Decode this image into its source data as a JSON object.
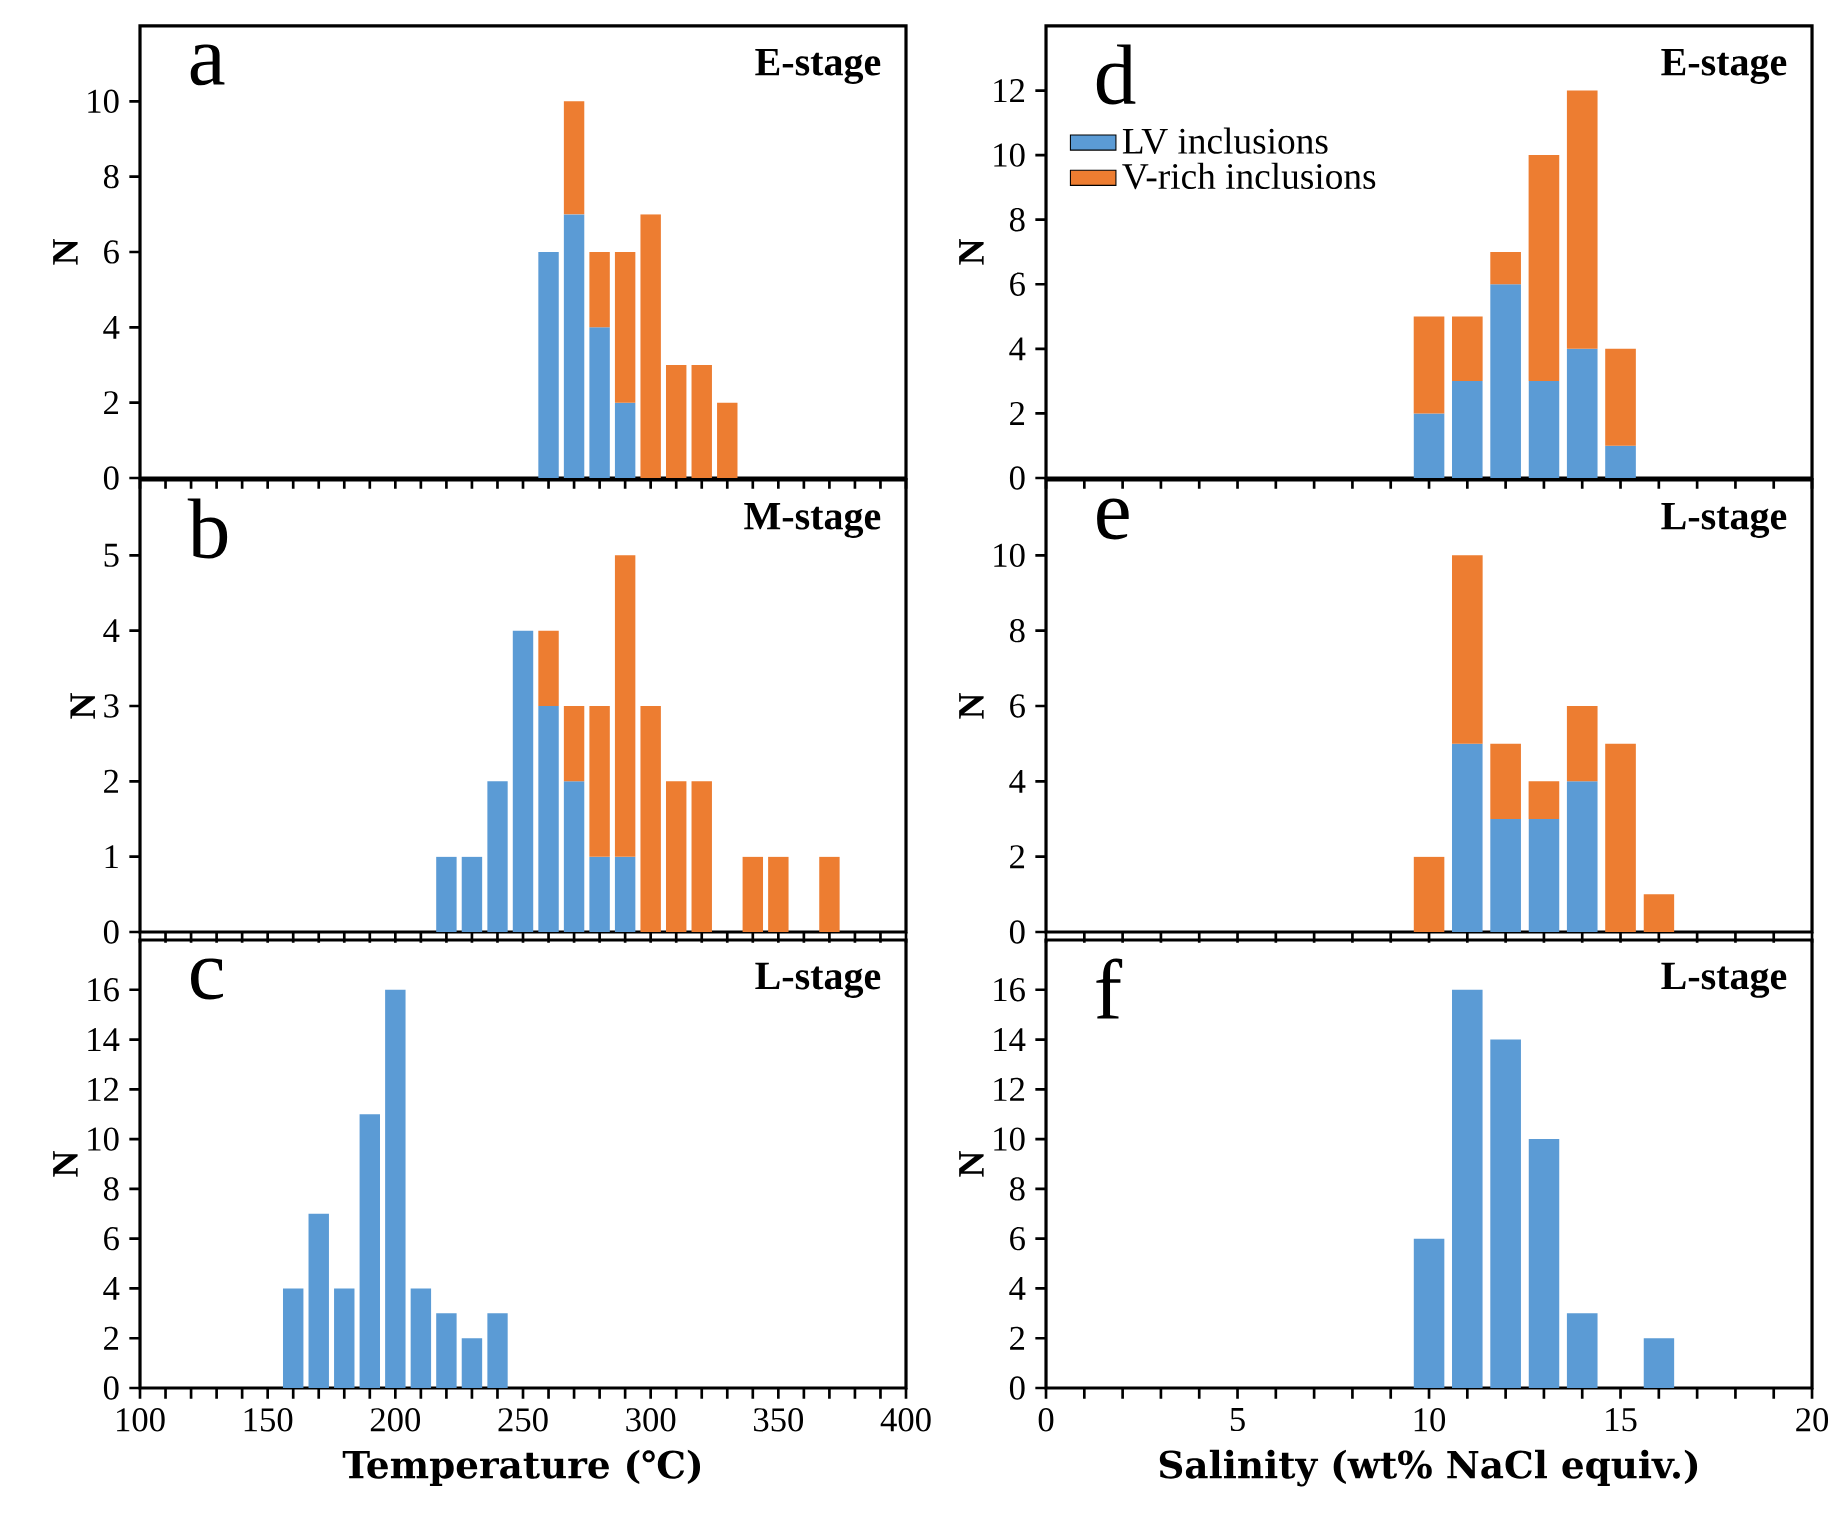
{
  "chart_data": [
    {
      "type": "bar",
      "stacked": true,
      "title": "E-stage",
      "ylabel": "N",
      "annotations": [
        "a"
      ],
      "tick_labels": "y",
      "x": [
        260,
        270,
        280,
        290,
        300,
        310,
        320,
        330
      ],
      "series": [
        {
          "color": "#5b9bd5",
          "values": [
            6,
            7,
            4,
            2,
            null,
            null,
            null,
            null
          ]
        },
        {
          "color": "#ed7d31",
          "values": [
            null,
            3,
            2,
            4,
            7,
            3,
            3,
            2
          ]
        }
      ],
      "xlim": [
        100,
        400
      ],
      "ylim": [
        0,
        12
      ],
      "yticks": [
        0,
        2,
        4,
        6,
        8,
        10
      ],
      "xticks": [
        100,
        {
          "value": 110,
          "label": null
        },
        {
          "value": 120,
          "label": null
        },
        {
          "value": 130,
          "label": null
        },
        {
          "value": 140,
          "label": null
        },
        150,
        {
          "value": 160,
          "label": null
        },
        {
          "value": 170,
          "label": null
        },
        {
          "value": 180,
          "label": null
        },
        {
          "value": 190,
          "label": null
        },
        200,
        {
          "value": 210,
          "label": null
        },
        {
          "value": 220,
          "label": null
        },
        {
          "value": 230,
          "label": null
        },
        {
          "value": 240,
          "label": null
        },
        250,
        {
          "value": 260,
          "label": null
        },
        {
          "value": 270,
          "label": null
        },
        {
          "value": 280,
          "label": null
        },
        {
          "value": 290,
          "label": null
        },
        300,
        {
          "value": 310,
          "label": null
        },
        {
          "value": 320,
          "label": null
        },
        {
          "value": 330,
          "label": null
        },
        {
          "value": 340,
          "label": null
        },
        350,
        {
          "value": 360,
          "label": null
        },
        {
          "value": 370,
          "label": null
        },
        {
          "value": 380,
          "label": null
        },
        {
          "value": 390,
          "label": null
        },
        400
      ]
    },
    {
      "type": "bar",
      "stacked": true,
      "title": "E-stage",
      "ylabel": "N",
      "annotations": [
        "d"
      ],
      "tick_labels": "y",
      "legend": "top left",
      "x": [
        10,
        11,
        12,
        13,
        14,
        15
      ],
      "series": [
        {
          "name": "LV inclusions",
          "color": "#5b9bd5",
          "values": [
            2,
            3,
            6,
            3,
            4,
            1
          ]
        },
        {
          "name": "V-rich inclusions",
          "color": "#ed7d31",
          "values": [
            3,
            2,
            1,
            7,
            8,
            3
          ]
        }
      ],
      "xlim": [
        0,
        20
      ],
      "ylim": [
        0,
        14
      ],
      "yticks": [
        0,
        2,
        4,
        6,
        8,
        10,
        12
      ],
      "xticks": [
        0,
        {
          "value": 1,
          "label": null
        },
        {
          "value": 2,
          "label": null
        },
        {
          "value": 3,
          "label": null
        },
        {
          "value": 4,
          "label": null
        },
        5,
        {
          "value": 6,
          "label": null
        },
        {
          "value": 7,
          "label": null
        },
        {
          "value": 8,
          "label": null
        },
        {
          "value": 9,
          "label": null
        },
        10,
        {
          "value": 11,
          "label": null
        },
        {
          "value": 12,
          "label": null
        },
        {
          "value": 13,
          "label": null
        },
        {
          "value": 14,
          "label": null
        },
        15,
        {
          "value": 16,
          "label": null
        },
        {
          "value": 17,
          "label": null
        },
        {
          "value": 18,
          "label": null
        },
        {
          "value": 19,
          "label": null
        },
        20
      ]
    },
    {
      "type": "bar",
      "stacked": true,
      "title": "M-stage",
      "ylabel": "N",
      "annotations": [
        "b"
      ],
      "tick_labels": "y",
      "x": [
        220,
        230,
        240,
        250,
        260,
        270,
        280,
        290,
        300,
        310,
        320,
        340,
        350,
        370
      ],
      "series": [
        {
          "color": "#5b9bd5",
          "values": [
            1,
            1,
            2,
            4,
            3,
            2,
            1,
            1,
            null,
            null,
            null,
            null,
            null,
            null
          ]
        },
        {
          "color": "#ed7d31",
          "values": [
            null,
            null,
            null,
            null,
            1,
            1,
            2,
            4,
            3,
            2,
            2,
            1,
            1,
            1
          ]
        }
      ],
      "xlim": [
        100,
        400
      ],
      "ylim": [
        0,
        6
      ],
      "yticks": [
        0,
        1,
        2,
        3,
        4,
        5
      ],
      "xticks": [
        100,
        {
          "value": 110,
          "label": null
        },
        {
          "value": 120,
          "label": null
        },
        {
          "value": 130,
          "label": null
        },
        {
          "value": 140,
          "label": null
        },
        150,
        {
          "value": 160,
          "label": null
        },
        {
          "value": 170,
          "label": null
        },
        {
          "value": 180,
          "label": null
        },
        {
          "value": 190,
          "label": null
        },
        200,
        {
          "value": 210,
          "label": null
        },
        {
          "value": 220,
          "label": null
        },
        {
          "value": 230,
          "label": null
        },
        {
          "value": 240,
          "label": null
        },
        250,
        {
          "value": 260,
          "label": null
        },
        {
          "value": 270,
          "label": null
        },
        {
          "value": 280,
          "label": null
        },
        {
          "value": 290,
          "label": null
        },
        300,
        {
          "value": 310,
          "label": null
        },
        {
          "value": 320,
          "label": null
        },
        {
          "value": 330,
          "label": null
        },
        {
          "value": 340,
          "label": null
        },
        350,
        {
          "value": 360,
          "label": null
        },
        {
          "value": 370,
          "label": null
        },
        {
          "value": 380,
          "label": null
        },
        {
          "value": 390,
          "label": null
        },
        400
      ]
    },
    {
      "type": "bar",
      "stacked": true,
      "title": "L-stage",
      "ylabel": "N",
      "annotations": [
        "e"
      ],
      "tick_labels": "y",
      "x": [
        10,
        11,
        12,
        13,
        14,
        15,
        16
      ],
      "series": [
        {
          "color": "#5b9bd5",
          "values": [
            null,
            5,
            3,
            3,
            4,
            null,
            null
          ]
        },
        {
          "color": "#ed7d31",
          "values": [
            2,
            5,
            2,
            1,
            2,
            5,
            1
          ]
        }
      ],
      "xlim": [
        0,
        20
      ],
      "ylim": [
        0,
        12
      ],
      "yticks": [
        0,
        2,
        4,
        6,
        8,
        10
      ],
      "xticks": [
        0,
        {
          "value": 1,
          "label": null
        },
        {
          "value": 2,
          "label": null
        },
        {
          "value": 3,
          "label": null
        },
        {
          "value": 4,
          "label": null
        },
        5,
        {
          "value": 6,
          "label": null
        },
        {
          "value": 7,
          "label": null
        },
        {
          "value": 8,
          "label": null
        },
        {
          "value": 9,
          "label": null
        },
        10,
        {
          "value": 11,
          "label": null
        },
        {
          "value": 12,
          "label": null
        },
        {
          "value": 13,
          "label": null
        },
        {
          "value": 14,
          "label": null
        },
        15,
        {
          "value": 16,
          "label": null
        },
        {
          "value": 17,
          "label": null
        },
        {
          "value": 18,
          "label": null
        },
        {
          "value": 19,
          "label": null
        },
        20
      ]
    },
    {
      "type": "bar",
      "title": "L-stage",
      "xlabel": "Temperature (℃)",
      "ylabel": "N",
      "annotations": [
        "c"
      ],
      "x": [
        160,
        170,
        180,
        190,
        200,
        210,
        220,
        230,
        240
      ],
      "series": [
        {
          "color": "#5b9bd5",
          "values": [
            4,
            7,
            4,
            11,
            16,
            4,
            3,
            2,
            3
          ]
        }
      ],
      "xlim": [
        100,
        400
      ],
      "ylim": [
        0,
        18
      ],
      "yticks": [
        0,
        2,
        4,
        6,
        8,
        10,
        12,
        14,
        16
      ],
      "xticks": [
        100,
        {
          "value": 110,
          "label": null
        },
        {
          "value": 120,
          "label": null
        },
        {
          "value": 130,
          "label": null
        },
        {
          "value": 140,
          "label": null
        },
        150,
        {
          "value": 160,
          "label": null
        },
        {
          "value": 170,
          "label": null
        },
        {
          "value": 180,
          "label": null
        },
        {
          "value": 190,
          "label": null
        },
        200,
        {
          "value": 210,
          "label": null
        },
        {
          "value": 220,
          "label": null
        },
        {
          "value": 230,
          "label": null
        },
        {
          "value": 240,
          "label": null
        },
        250,
        {
          "value": 260,
          "label": null
        },
        {
          "value": 270,
          "label": null
        },
        {
          "value": 280,
          "label": null
        },
        {
          "value": 290,
          "label": null
        },
        300,
        {
          "value": 310,
          "label": null
        },
        {
          "value": 320,
          "label": null
        },
        {
          "value": 330,
          "label": null
        },
        {
          "value": 340,
          "label": null
        },
        350,
        {
          "value": 360,
          "label": null
        },
        {
          "value": 370,
          "label": null
        },
        {
          "value": 380,
          "label": null
        },
        {
          "value": 390,
          "label": null
        },
        400
      ]
    },
    {
      "type": "bar",
      "title": "L-stage",
      "xlabel": "Salinity (wt% NaCl equiv.)",
      "ylabel": "N",
      "annotations": [
        "f"
      ],
      "x": [
        10,
        11,
        12,
        13,
        14,
        16
      ],
      "series": [
        {
          "color": "#5b9bd5",
          "values": [
            6,
            16,
            14,
            10,
            3,
            2
          ]
        }
      ],
      "xlim": [
        0,
        20
      ],
      "ylim": [
        0,
        18
      ],
      "yticks": [
        0,
        2,
        4,
        6,
        8,
        10,
        12,
        14,
        16
      ],
      "xticks": [
        0,
        {
          "value": 1,
          "label": null
        },
        {
          "value": 2,
          "label": null
        },
        {
          "value": 3,
          "label": null
        },
        {
          "value": 4,
          "label": null
        },
        5,
        {
          "value": 6,
          "label": null
        },
        {
          "value": 7,
          "label": null
        },
        {
          "value": 8,
          "label": null
        },
        {
          "value": 9,
          "label": null
        },
        10,
        {
          "value": 11,
          "label": null
        },
        {
          "value": 12,
          "label": null
        },
        {
          "value": 13,
          "label": null
        },
        {
          "value": 14,
          "label": null
        },
        15,
        {
          "value": 16,
          "label": null
        },
        {
          "value": 17,
          "label": null
        },
        {
          "value": 18,
          "label": null
        },
        {
          "value": 19,
          "label": null
        },
        20
      ]
    }
  ]
}
